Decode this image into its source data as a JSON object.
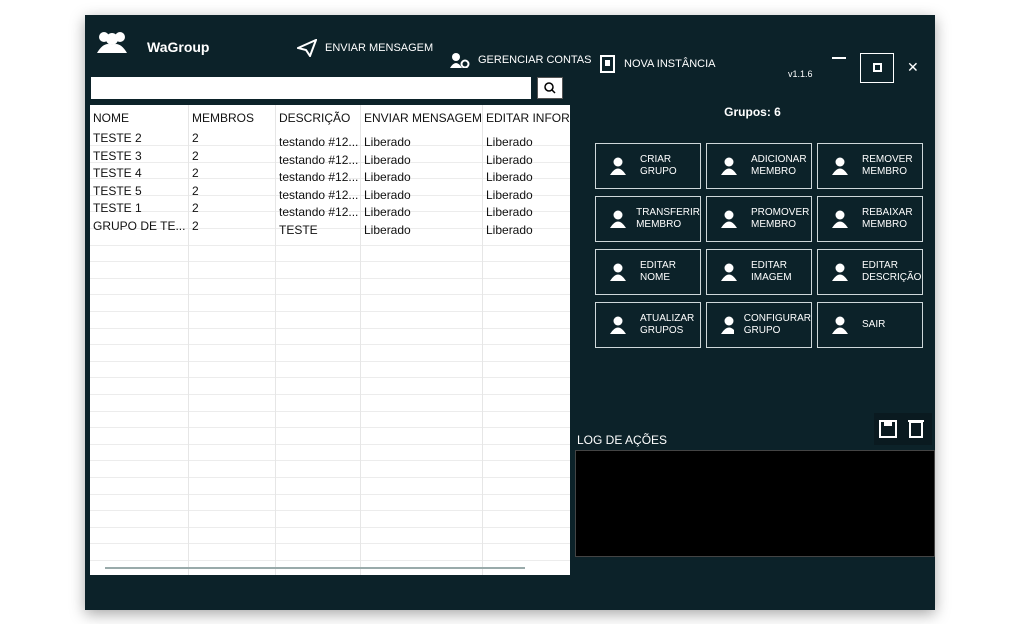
{
  "app": {
    "title": "WaGroup",
    "version": "v1.1.6"
  },
  "nav": [
    "ENVIAR MENSAGEM",
    "GERENCIAR CONTAS",
    "NOVA INSTÂNCIA"
  ],
  "table": {
    "headers": [
      "NOME",
      "MEMBROS",
      "DESCRIÇÃO",
      "ENVIAR MENSAGEM",
      "EDITAR INFORM"
    ],
    "rows": [
      [
        "TESTE 2",
        "2",
        "testando #12...",
        "Liberado",
        "Liberado"
      ],
      [
        "TESTE 3",
        "2",
        "testando #12...",
        "Liberado",
        "Liberado"
      ],
      [
        "TESTE 4",
        "2",
        "testando #12...",
        "Liberado",
        "Liberado"
      ],
      [
        "TESTE 5",
        "2",
        "testando #12...",
        "Liberado",
        "Liberado"
      ],
      [
        "TESTE 1",
        "2",
        "testando #12...",
        "Liberado",
        "Liberado"
      ],
      [
        "GRUPO DE TE...",
        "2",
        "TESTE",
        "Liberado",
        "Liberado"
      ]
    ]
  },
  "groups_count": "Grupos: 6",
  "buttons": [
    [
      "CRIAR",
      "GRUPO"
    ],
    [
      "ADICIONAR",
      "MEMBRO"
    ],
    [
      "REMOVER",
      "MEMBRO"
    ],
    [
      "TRANSFERIR",
      "MEMBRO"
    ],
    [
      "PROMOVER",
      "MEMBRO"
    ],
    [
      "REBAIXAR",
      "MEMBRO"
    ],
    [
      "EDITAR",
      "NOME"
    ],
    [
      "EDITAR",
      "IMAGEM"
    ],
    [
      "EDITAR",
      "DESCRIÇÃO"
    ],
    [
      "ATUALIZAR",
      "GRUPOS"
    ],
    [
      "CONFIGURAR",
      "GRUPO"
    ],
    [
      "SAIR"
    ]
  ],
  "log": {
    "title": "LOG DE AÇÕES"
  }
}
